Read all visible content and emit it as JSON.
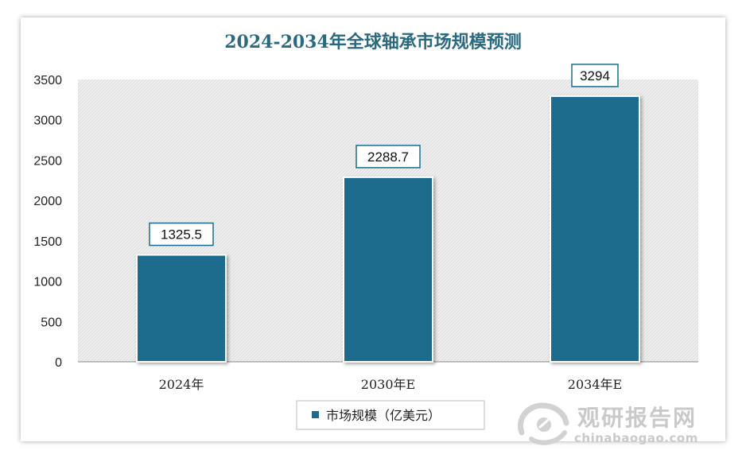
{
  "chart_data": {
    "type": "bar",
    "title": "2024-2034年全球轴承市场规模预测",
    "categories": [
      "2024年",
      "2030年E",
      "2034年E"
    ],
    "series": [
      {
        "name": "市场规模（亿美元）",
        "values": [
          1325.5,
          2288.7,
          3294
        ],
        "labels": [
          "1325.5",
          "2288.7",
          "3294"
        ]
      }
    ],
    "ylim": [
      0,
      3500
    ],
    "yticks": [
      0,
      500,
      1000,
      1500,
      2000,
      2500,
      3000,
      3500
    ],
    "grid": false,
    "legend": "bottom",
    "colors": {
      "bar": "#1c6b8c",
      "title": "#2a6a80",
      "label_border": "#1c6b8c"
    }
  },
  "watermark": {
    "name": "观研报告网",
    "url": "chinabaogao.com",
    "logo_icon": "chinabaogao-logo-icon"
  }
}
